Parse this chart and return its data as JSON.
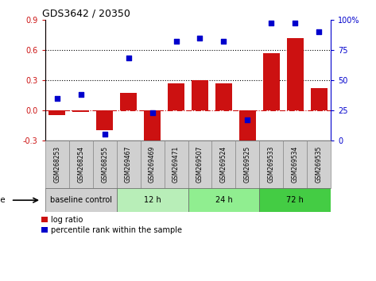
{
  "title": "GDS3642 / 20350",
  "samples": [
    "GSM268253",
    "GSM268254",
    "GSM268255",
    "GSM269467",
    "GSM269469",
    "GSM269471",
    "GSM269507",
    "GSM269524",
    "GSM269525",
    "GSM269533",
    "GSM269534",
    "GSM269535"
  ],
  "log_ratio": [
    -0.05,
    -0.02,
    -0.2,
    0.17,
    -0.32,
    0.27,
    0.3,
    0.27,
    -0.35,
    0.57,
    0.72,
    0.22
  ],
  "percentile_rank": [
    35,
    38,
    5,
    68,
    23,
    82,
    85,
    82,
    17,
    97,
    97,
    90
  ],
  "groups": [
    {
      "label": "baseline control",
      "start": 0,
      "end": 3,
      "color": "#d0d0d0"
    },
    {
      "label": "12 h",
      "start": 3,
      "end": 6,
      "color": "#b8eeb8"
    },
    {
      "label": "24 h",
      "start": 6,
      "end": 9,
      "color": "#90ee90"
    },
    {
      "label": "72 h",
      "start": 9,
      "end": 12,
      "color": "#44cc44"
    }
  ],
  "bar_color": "#cc1111",
  "dot_color": "#0000cc",
  "left_ylim": [
    -0.3,
    0.9
  ],
  "right_ylim": [
    0,
    100
  ],
  "left_yticks": [
    -0.3,
    0.0,
    0.3,
    0.6,
    0.9
  ],
  "right_yticks": [
    0,
    25,
    50,
    75,
    100
  ],
  "hlines": [
    0.3,
    0.6
  ],
  "zero_line": 0.0,
  "sample_box_color": "#d0d0d0",
  "sample_box_edge": "#888888"
}
